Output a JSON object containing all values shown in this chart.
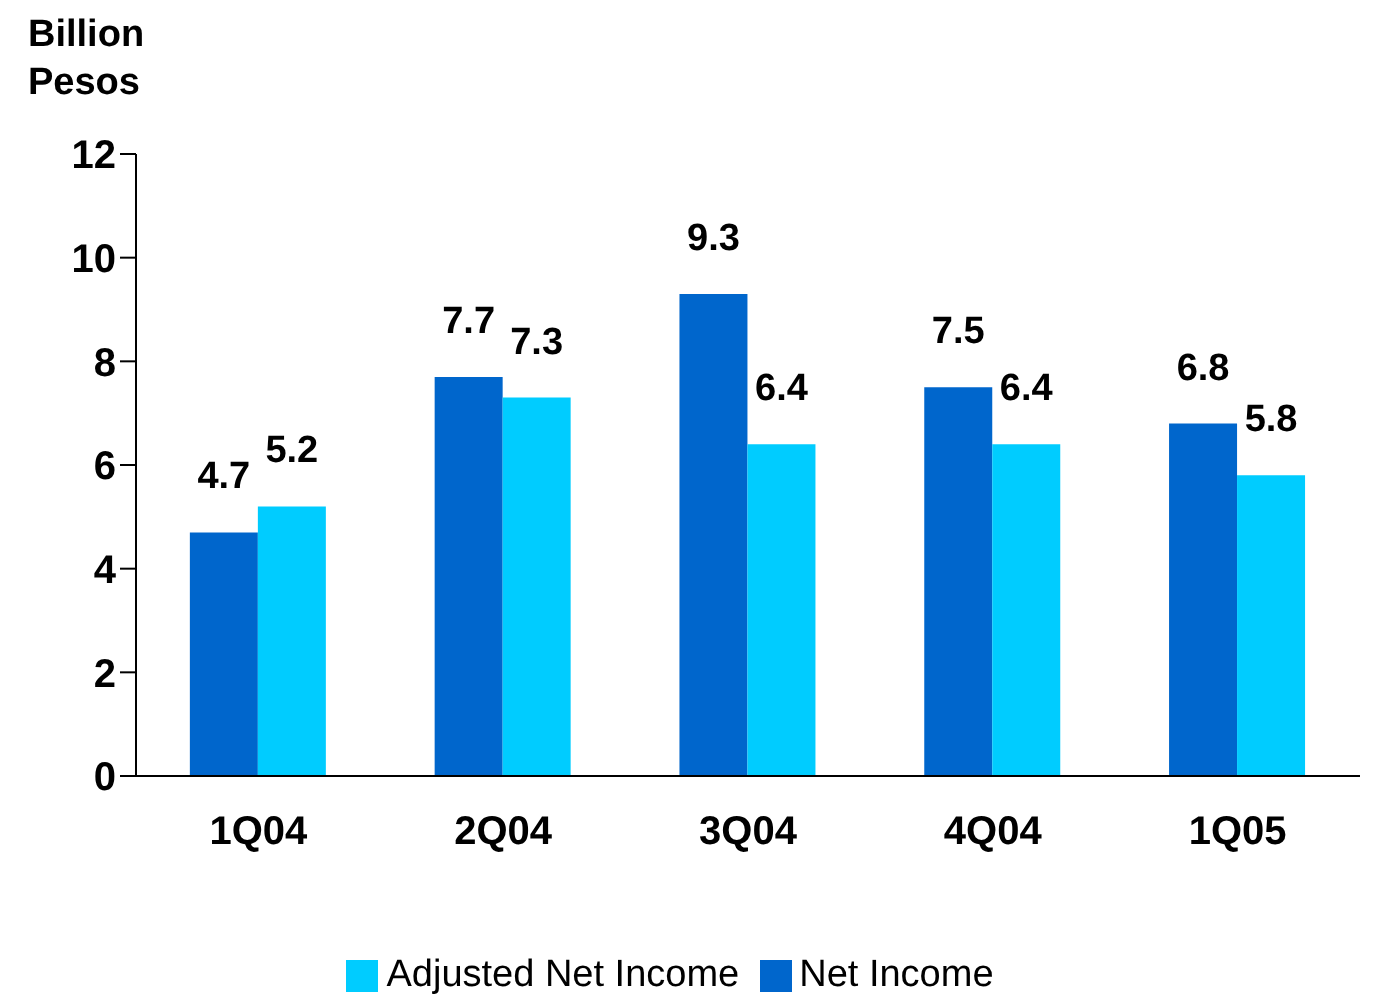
{
  "chart_data": {
    "type": "bar",
    "ylabel": "Billion Pesos",
    "categories": [
      "1Q04",
      "2Q04",
      "3Q04",
      "4Q04",
      "1Q05"
    ],
    "series": [
      {
        "name": "Net Income",
        "color": "#0066cc",
        "values": [
          4.7,
          7.7,
          9.3,
          7.5,
          6.8
        ]
      },
      {
        "name": "Adjusted Net Income",
        "color": "#00ccff",
        "values": [
          5.2,
          7.3,
          6.4,
          6.4,
          5.8
        ]
      }
    ],
    "ylim": [
      0,
      12
    ],
    "yticks": [
      0,
      2,
      4,
      6,
      8,
      10,
      12
    ],
    "grid": false,
    "legend": "bottom",
    "data_labels": true
  }
}
